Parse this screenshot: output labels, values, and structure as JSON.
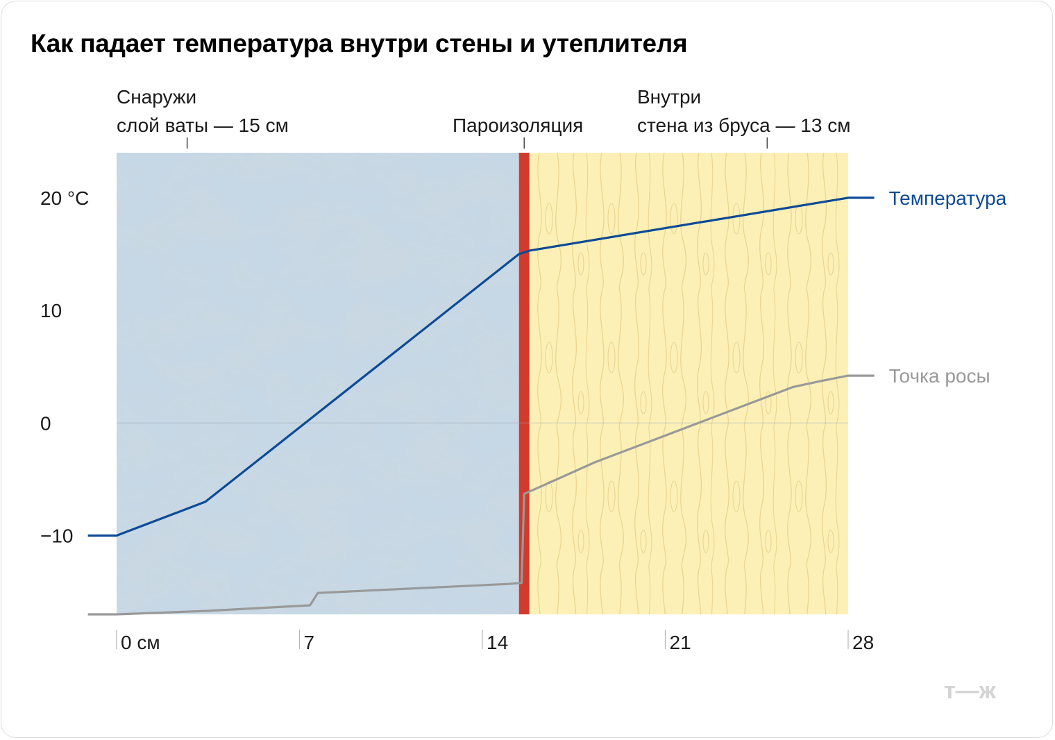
{
  "title": "Как падает температура внутри стены и утеплителя",
  "brand_mark": "т—ж",
  "colors": {
    "temperature": "#0d4a96",
    "dew_point": "#999999",
    "insulation": "#c6d7e5",
    "wood": "#fcf0b6",
    "vapor_barrier": "#d23b2b"
  },
  "chart_data": {
    "type": "line",
    "title": "Как падает температура внутри стены и утеплителя",
    "xlabel": "",
    "ylabel": "",
    "xlim": [
      0,
      28
    ],
    "ylim": [
      -17,
      24
    ],
    "x_ticks": [
      {
        "value": 0,
        "label": "0 см"
      },
      {
        "value": 7,
        "label": "7"
      },
      {
        "value": 14,
        "label": "14"
      },
      {
        "value": 21,
        "label": "21"
      },
      {
        "value": 28,
        "label": "28"
      }
    ],
    "y_ticks": [
      {
        "value": 20,
        "label": "20 °C"
      },
      {
        "value": 10,
        "label": "10"
      },
      {
        "value": 0,
        "label": "0"
      },
      {
        "value": -10,
        "label": "−10"
      }
    ],
    "zero_line": true,
    "regions": [
      {
        "label_lines": [
          "Снаружи",
          "слой ваты — 15 см"
        ],
        "x_start": 0,
        "x_end": 15.4,
        "pattern": "wool"
      },
      {
        "label_lines": [
          "Пароизоляция"
        ],
        "x_start": 15.4,
        "x_end": 15.8,
        "pattern": "barrier"
      },
      {
        "label_lines": [
          "Внутри",
          "стена из бруса — 13 см"
        ],
        "x_start": 15.8,
        "x_end": 28,
        "pattern": "wood"
      }
    ],
    "region_markers": [
      2.7,
      15.6,
      24.9
    ],
    "series": [
      {
        "name": "Температура",
        "color": "#0d4a96",
        "x": [
          -1.1,
          0,
          3.4,
          15.4,
          15.8,
          28,
          29
        ],
        "y": [
          -10,
          -10,
          -7,
          15,
          15.3,
          20,
          20
        ]
      },
      {
        "name": "Точка росы",
        "color": "#999999",
        "x": [
          -1.1,
          0,
          3.4,
          7.4,
          7.7,
          15.0,
          15.5,
          15.6,
          15.7,
          18.3,
          25.9,
          26.9,
          28,
          29
        ],
        "y": [
          -17,
          -17,
          -16.7,
          -16.2,
          -15.1,
          -14.3,
          -14.2,
          -6.3,
          -6.2,
          -3.5,
          3.2,
          3.7,
          4.2,
          4.2
        ]
      }
    ]
  }
}
